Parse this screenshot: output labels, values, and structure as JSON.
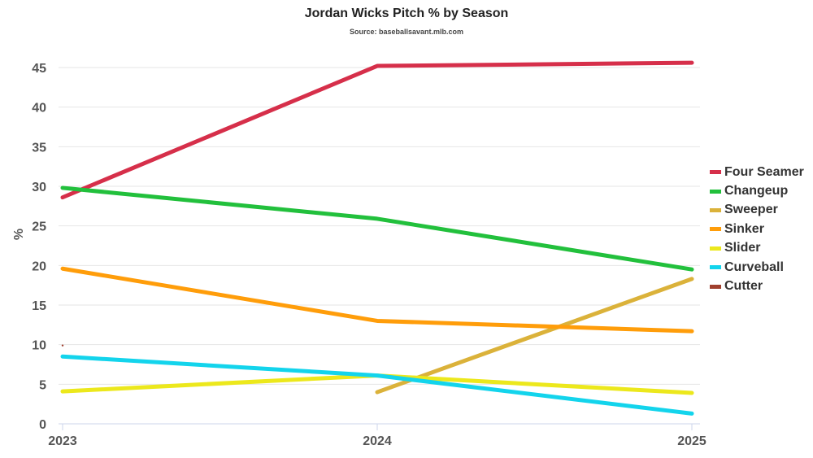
{
  "chart_data": {
    "type": "line",
    "title": "Jordan Wicks Pitch % by Season",
    "subtitle": "Source: baseballsavant.mlb.com",
    "xlabel": "",
    "ylabel": "%",
    "categories": [
      "2023",
      "2024",
      "2025"
    ],
    "ylim": [
      0,
      45
    ],
    "yticks": [
      0,
      5,
      10,
      15,
      20,
      25,
      30,
      35,
      40,
      45
    ],
    "grid": true,
    "legend_position": "right",
    "series": [
      {
        "name": "Four Seamer",
        "color": "#d62f4a",
        "values": [
          28.6,
          45.2,
          45.6
        ]
      },
      {
        "name": "Changeup",
        "color": "#22c03c",
        "values": [
          29.8,
          25.9,
          19.5
        ]
      },
      {
        "name": "Sweeper",
        "color": "#dbb23a",
        "values": [
          null,
          4.0,
          18.3
        ]
      },
      {
        "name": "Sinker",
        "color": "#ff9d0a",
        "values": [
          19.6,
          13.0,
          11.7
        ]
      },
      {
        "name": "Slider",
        "color": "#ece81c",
        "values": [
          4.1,
          6.1,
          3.9
        ]
      },
      {
        "name": "Curveball",
        "color": "#13d4ec",
        "values": [
          8.5,
          6.1,
          1.3
        ]
      },
      {
        "name": "Cutter",
        "color": "#a0402e",
        "values": [
          9.9,
          null,
          null
        ]
      }
    ]
  }
}
